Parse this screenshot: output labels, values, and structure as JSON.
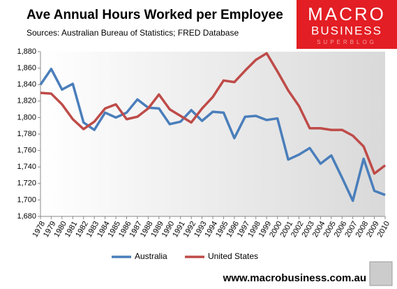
{
  "chart_data": {
    "type": "line",
    "title": "Ave Annual Hours Worked per Employee",
    "subtitle": "Sources: Australian Bureau of Statistics; FRED Database",
    "categories": [
      "1978",
      "1979",
      "1980",
      "1981",
      "1982",
      "1983",
      "1984",
      "1985",
      "1986",
      "1987",
      "1988",
      "1989",
      "1990",
      "1991",
      "1992",
      "1993",
      "1994",
      "1995",
      "1996",
      "1997",
      "1998",
      "1999",
      "2000",
      "2001",
      "2002",
      "2003",
      "2004",
      "2005",
      "2006",
      "2007",
      "2008",
      "2009",
      "2010"
    ],
    "series": [
      {
        "name": "Australia",
        "color": "#4a7ebb",
        "values": [
          1840,
          1859,
          1834,
          1841,
          1794,
          1785,
          1806,
          1800,
          1806,
          1822,
          1812,
          1811,
          1792,
          1795,
          1809,
          1796,
          1807,
          1806,
          1775,
          1801,
          1802,
          1797,
          1799,
          1749,
          1755,
          1763,
          1744,
          1754,
          1727,
          1699,
          1750,
          1711,
          1706
        ]
      },
      {
        "name": "United States",
        "color": "#be4b48",
        "values": [
          1830,
          1829,
          1816,
          1798,
          1786,
          1795,
          1811,
          1816,
          1798,
          1801,
          1811,
          1828,
          1810,
          1802,
          1794,
          1811,
          1825,
          1845,
          1843,
          1857,
          1870,
          1878,
          1856,
          1833,
          1814,
          1787,
          1787,
          1785,
          1785,
          1778,
          1765,
          1732,
          1742
        ]
      }
    ],
    "ylim": [
      1680,
      1880
    ],
    "yticks": [
      {
        "value": 1680,
        "label": "1,680"
      },
      {
        "value": 1700,
        "label": "1,700"
      },
      {
        "value": 1720,
        "label": "1,720"
      },
      {
        "value": 1740,
        "label": "1,740"
      },
      {
        "value": 1760,
        "label": "1,760"
      },
      {
        "value": 1780,
        "label": "1,780"
      },
      {
        "value": 1800,
        "label": "1,800"
      },
      {
        "value": 1820,
        "label": "1,820"
      },
      {
        "value": 1840,
        "label": "1,840"
      },
      {
        "value": 1860,
        "label": "1,860"
      },
      {
        "value": 1880,
        "label": "1,880"
      }
    ],
    "legend": "bottom"
  },
  "brand": {
    "name": "MACRO",
    "sub": "BUSINESS",
    "tag": "SUPERBLOG"
  },
  "footer": "www.macrobusiness.com.au"
}
